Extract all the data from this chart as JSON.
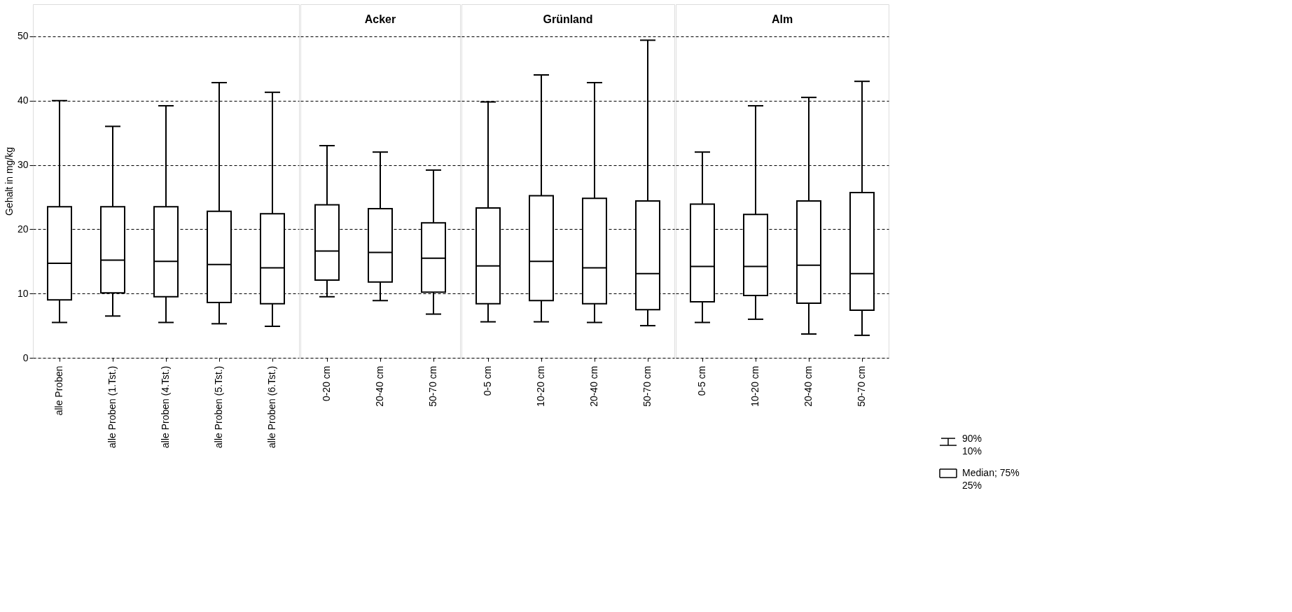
{
  "chart_data": [
    {
      "type": "box",
      "ylabel": "Gehalt in mg/kg",
      "categories": [
        "alle Proben",
        "alle Proben (1.Tst.)",
        "alle Proben (4.Tst.)",
        "alle Proben (5.Tst.)",
        "alle Proben (6.Tst.)"
      ],
      "boxes": [
        {
          "low": 5.5,
          "q1": 9,
          "median": 14.7,
          "q3": 23.5,
          "high": 40
        },
        {
          "low": 6.5,
          "q1": 10.1,
          "median": 15.2,
          "q3": 23.5,
          "high": 36
        },
        {
          "low": 5.5,
          "q1": 9.5,
          "median": 15,
          "q3": 23.5,
          "high": 39.2
        },
        {
          "low": 5.3,
          "q1": 8.6,
          "median": 14.5,
          "q3": 22.8,
          "high": 42.8
        },
        {
          "low": 4.9,
          "q1": 8.4,
          "median": 14,
          "q3": 22.4,
          "high": 41.3
        }
      ],
      "ylim": [
        0,
        55
      ],
      "yticks": [
        0,
        10,
        20,
        30,
        40,
        50
      ],
      "grid": "y"
    },
    {
      "type": "box",
      "title": "Acker",
      "categories": [
        "0-20 cm",
        "20-40 cm",
        "50-70 cm"
      ],
      "boxes": [
        {
          "low": 9.5,
          "q1": 12.1,
          "median": 16.6,
          "q3": 23.8,
          "high": 33
        },
        {
          "low": 8.9,
          "q1": 11.8,
          "median": 16.4,
          "q3": 23.2,
          "high": 32
        },
        {
          "low": 6.8,
          "q1": 10.2,
          "median": 15.5,
          "q3": 21,
          "high": 29.2
        }
      ],
      "ylim": [
        0,
        55
      ],
      "yticks": [
        0,
        10,
        20,
        30,
        40,
        50
      ],
      "grid": "y",
      "tick_labels": "x"
    },
    {
      "type": "box",
      "title": "Grünland",
      "categories": [
        "0-5 cm",
        "10-20 cm",
        "20-40 cm",
        "50-70 cm"
      ],
      "boxes": [
        {
          "low": 5.6,
          "q1": 8.4,
          "median": 14.3,
          "q3": 23.3,
          "high": 39.8
        },
        {
          "low": 5.6,
          "q1": 8.9,
          "median": 15,
          "q3": 25.2,
          "high": 44
        },
        {
          "low": 5.5,
          "q1": 8.4,
          "median": 14,
          "q3": 24.8,
          "high": 42.8
        },
        {
          "low": 5,
          "q1": 7.5,
          "median": 13.1,
          "q3": 24.4,
          "high": 49.4
        }
      ],
      "ylim": [
        0,
        55
      ],
      "yticks": [
        0,
        10,
        20,
        30,
        40,
        50
      ],
      "grid": "y",
      "tick_labels": "x"
    },
    {
      "type": "box",
      "title": "Alm",
      "categories": [
        "0-5 cm",
        "10-20 cm",
        "20-40 cm",
        "50-70 cm"
      ],
      "boxes": [
        {
          "low": 5.5,
          "q1": 8.7,
          "median": 14.2,
          "q3": 23.9,
          "high": 32
        },
        {
          "low": 6,
          "q1": 9.7,
          "median": 14.2,
          "q3": 22.3,
          "high": 39.2
        },
        {
          "low": 3.7,
          "q1": 8.5,
          "median": 14.4,
          "q3": 24.4,
          "high": 40.5
        },
        {
          "low": 3.5,
          "q1": 7.4,
          "median": 13.1,
          "q3": 25.7,
          "high": 43
        }
      ],
      "ylim": [
        0,
        55
      ],
      "yticks": [
        0,
        10,
        20,
        30,
        40,
        50
      ],
      "grid": "y",
      "tick_labels": "x",
      "annotations": [
        "90%",
        "10%",
        "Median; 75%",
        "25%"
      ]
    }
  ]
}
